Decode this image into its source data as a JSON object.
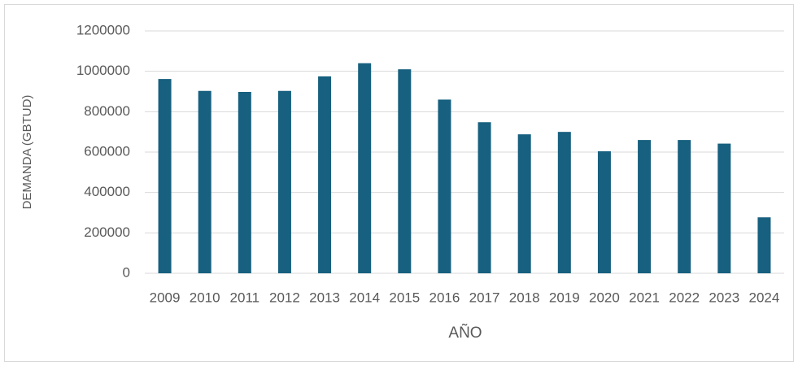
{
  "chart_data": {
    "type": "bar",
    "y_label": "DEMANDA (GBTUD)",
    "x_label": "AÑO",
    "categories": [
      "2009",
      "2010",
      "2011",
      "2012",
      "2013",
      "2014",
      "2015",
      "2016",
      "2017",
      "2018",
      "2019",
      "2020",
      "2021",
      "2022",
      "2023",
      "2024"
    ],
    "values": [
      962000,
      903000,
      898000,
      903000,
      975000,
      1040000,
      1010000,
      860000,
      748000,
      688000,
      700000,
      604000,
      660000,
      660000,
      642000,
      277000
    ],
    "color": "#17607f",
    "ylim": [
      0,
      1200000
    ],
    "yticks": [
      0,
      200000,
      400000,
      600000,
      800000,
      1000000,
      1200000
    ],
    "grid": true
  }
}
